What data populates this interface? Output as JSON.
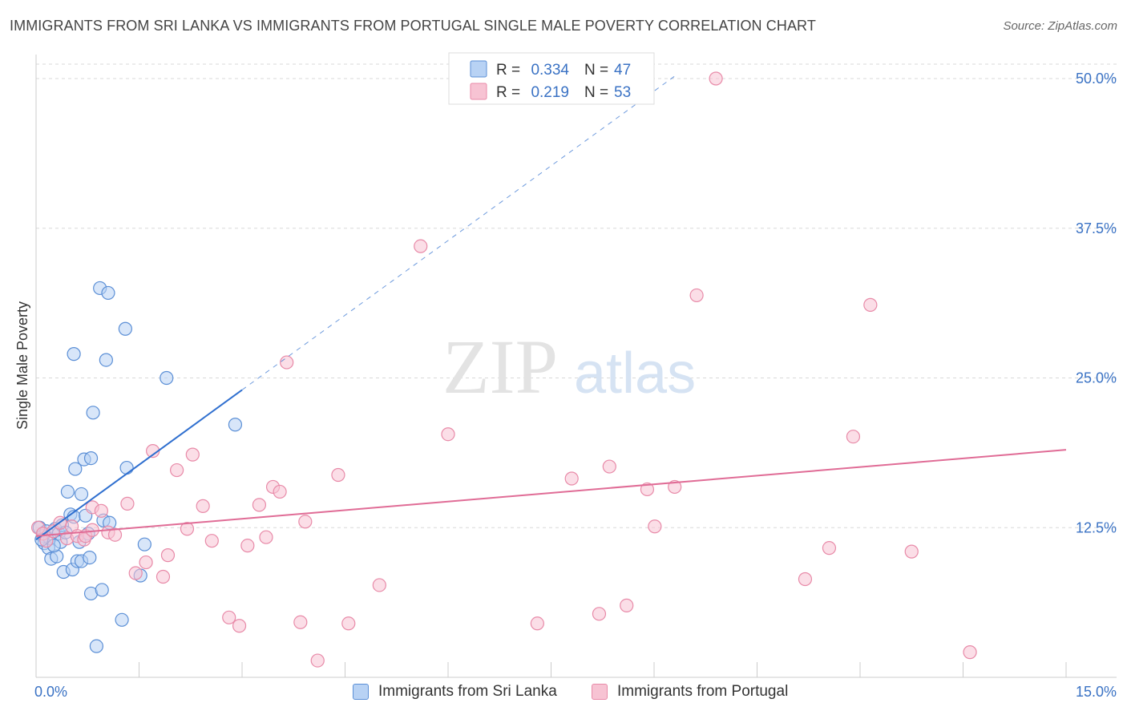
{
  "header": {
    "title": "IMMIGRANTS FROM SRI LANKA VS IMMIGRANTS FROM PORTUGAL SINGLE MALE POVERTY CORRELATION CHART",
    "source": "Source: ZipAtlas.com"
  },
  "watermark": {
    "zip": "ZIP",
    "atlas": "atlas"
  },
  "colors": {
    "blue_fill": "#b8d2f4",
    "blue_stroke": "#5b8fd6",
    "blue_line": "#2f6fcf",
    "pink_fill": "#f7c3d3",
    "pink_stroke": "#e88aa8",
    "pink_line": "#e06c96",
    "axis_label": "#3a72c4",
    "grid": "#d9d9d9"
  },
  "chart_data": {
    "type": "scatter",
    "ylabel": "Single Male Poverty",
    "xlabel": "",
    "xlim": [
      0,
      15
    ],
    "ylim": [
      0,
      50
    ],
    "x_tick_labels": [
      {
        "value": 0,
        "label": "0.0%"
      },
      {
        "value": 15,
        "label": "15.0%"
      }
    ],
    "y_tick_labels": [
      {
        "value": 12.5,
        "label": "12.5%"
      },
      {
        "value": 25,
        "label": "25.0%"
      },
      {
        "value": 37.5,
        "label": "37.5%"
      },
      {
        "value": 50,
        "label": "50.0%"
      }
    ],
    "legend_stats": [
      {
        "r_label": "R =",
        "r": "0.334",
        "n_label": "N =",
        "n": "47",
        "color": "blue"
      },
      {
        "r_label": "R =",
        "r": "0.219",
        "n_label": "N =",
        "n": "53",
        "color": "pink"
      }
    ],
    "series": [
      {
        "name": "Immigrants from Sri Lanka",
        "color": "blue",
        "trend": {
          "x0": 0.0,
          "y0": 11.5,
          "x1": 3.0,
          "y1": 24.0,
          "dash_to_x": 9.3,
          "dash_to_y": 50.2
        },
        "points": [
          [
            0.05,
            12.5
          ],
          [
            0.1,
            11.8
          ],
          [
            0.12,
            11.2
          ],
          [
            0.15,
            12.2
          ],
          [
            0.18,
            10.8
          ],
          [
            0.2,
            11.6
          ],
          [
            0.22,
            9.9
          ],
          [
            0.28,
            12.4
          ],
          [
            0.3,
            10.1
          ],
          [
            0.33,
            12.0
          ],
          [
            0.36,
            11.3
          ],
          [
            0.38,
            12.7
          ],
          [
            0.4,
            8.8
          ],
          [
            0.43,
            12.1
          ],
          [
            0.46,
            15.5
          ],
          [
            0.5,
            13.6
          ],
          [
            0.53,
            9.0
          ],
          [
            0.55,
            13.4
          ],
          [
            0.55,
            27.0
          ],
          [
            0.57,
            17.4
          ],
          [
            0.6,
            9.7
          ],
          [
            0.63,
            11.3
          ],
          [
            0.66,
            9.7
          ],
          [
            0.66,
            15.3
          ],
          [
            0.7,
            18.2
          ],
          [
            0.72,
            13.5
          ],
          [
            0.76,
            12.0
          ],
          [
            0.78,
            10.0
          ],
          [
            0.8,
            18.3
          ],
          [
            0.8,
            7.0
          ],
          [
            0.83,
            22.1
          ],
          [
            0.88,
            2.6
          ],
          [
            0.93,
            32.5
          ],
          [
            0.96,
            7.3
          ],
          [
            0.98,
            13.1
          ],
          [
            1.02,
            26.5
          ],
          [
            1.05,
            32.1
          ],
          [
            1.07,
            12.9
          ],
          [
            1.25,
            4.8
          ],
          [
            1.3,
            29.1
          ],
          [
            1.32,
            17.5
          ],
          [
            1.52,
            8.5
          ],
          [
            1.58,
            11.1
          ],
          [
            1.9,
            25.0
          ],
          [
            2.9,
            21.1
          ],
          [
            0.08,
            11.5
          ],
          [
            0.26,
            11.0
          ]
        ]
      },
      {
        "name": "Immigrants from Portugal",
        "color": "pink",
        "trend": {
          "x0": 0.0,
          "y0": 11.8,
          "x1": 15.0,
          "y1": 19.0
        },
        "points": [
          [
            0.03,
            12.5
          ],
          [
            0.1,
            12.0
          ],
          [
            0.15,
            11.4
          ],
          [
            0.25,
            12.2
          ],
          [
            0.35,
            12.9
          ],
          [
            0.45,
            11.6
          ],
          [
            0.52,
            12.6
          ],
          [
            0.6,
            11.8
          ],
          [
            0.7,
            11.5
          ],
          [
            0.72,
            11.8
          ],
          [
            0.82,
            12.3
          ],
          [
            0.82,
            14.2
          ],
          [
            0.95,
            13.9
          ],
          [
            1.05,
            12.1
          ],
          [
            1.15,
            11.9
          ],
          [
            1.33,
            14.5
          ],
          [
            1.45,
            8.7
          ],
          [
            1.6,
            9.6
          ],
          [
            1.7,
            18.9
          ],
          [
            1.85,
            8.4
          ],
          [
            1.92,
            10.2
          ],
          [
            2.05,
            17.3
          ],
          [
            2.2,
            12.4
          ],
          [
            2.28,
            18.6
          ],
          [
            2.43,
            14.3
          ],
          [
            2.56,
            11.4
          ],
          [
            2.81,
            5.0
          ],
          [
            2.96,
            4.3
          ],
          [
            3.08,
            11.0
          ],
          [
            3.25,
            14.4
          ],
          [
            3.35,
            11.7
          ],
          [
            3.45,
            15.9
          ],
          [
            3.55,
            15.5
          ],
          [
            3.65,
            26.3
          ],
          [
            3.85,
            4.6
          ],
          [
            3.92,
            13.0
          ],
          [
            4.1,
            1.4
          ],
          [
            4.4,
            16.9
          ],
          [
            4.55,
            4.5
          ],
          [
            5.0,
            7.7
          ],
          [
            5.6,
            36.0
          ],
          [
            6.0,
            20.3
          ],
          [
            7.3,
            4.5
          ],
          [
            7.8,
            16.6
          ],
          [
            8.2,
            5.3
          ],
          [
            8.35,
            17.6
          ],
          [
            8.6,
            6.0
          ],
          [
            8.9,
            15.7
          ],
          [
            9.01,
            12.6
          ],
          [
            9.3,
            15.9
          ],
          [
            9.62,
            31.9
          ],
          [
            9.9,
            50.0
          ],
          [
            11.2,
            8.2
          ]
        ],
        "extra_points": [
          [
            11.55,
            10.8
          ],
          [
            11.9,
            20.1
          ],
          [
            12.15,
            31.1
          ],
          [
            12.75,
            10.5
          ],
          [
            13.6,
            2.1
          ]
        ]
      }
    ]
  },
  "legend_bottom": [
    {
      "label": "Immigrants from Sri Lanka",
      "color": "blue"
    },
    {
      "label": "Immigrants from Portugal",
      "color": "pink"
    }
  ]
}
